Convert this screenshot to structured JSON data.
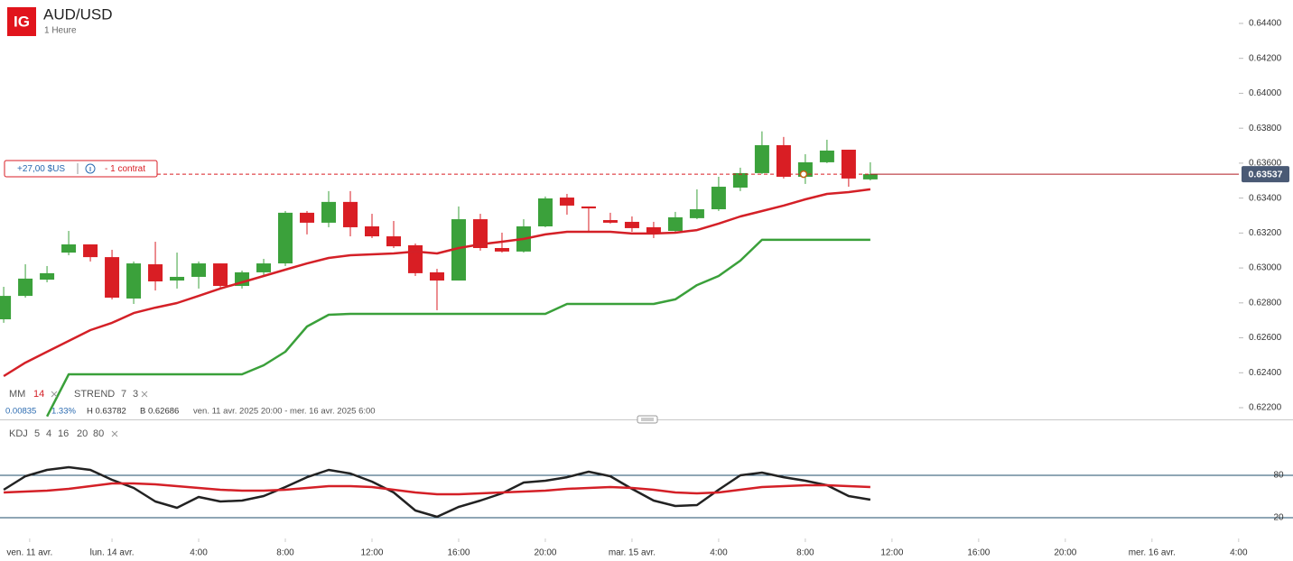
{
  "header": {
    "logo": "IG",
    "title": "AUD/USD",
    "subtitle": "1 Heure"
  },
  "position": {
    "pnl": "+27,00 $US",
    "size": "- 1 contrat"
  },
  "stats": {
    "change": "0.00835",
    "change_pct": "1.33%",
    "high": "H 0.63782",
    "low": "B 0.62686",
    "range": "ven. 11 avr. 2025 20:00 - mer. 16 avr. 2025 6:00"
  },
  "chart_data": [
    {
      "type": "candlestick",
      "up_color": "#3ba13b",
      "down_color": "#d91e24",
      "open": [
        0.62706,
        0.6284,
        0.62933,
        0.63088,
        0.63135,
        0.63062,
        0.62825,
        0.63021,
        0.62928,
        0.62949,
        0.63026,
        0.62897,
        0.62975,
        0.63026,
        0.63316,
        0.63259,
        0.63378,
        0.63238,
        0.63181,
        0.6313,
        0.62975,
        0.62928,
        0.63279,
        0.63114,
        0.63094,
        0.63238,
        0.63403,
        0.63352,
        0.63274,
        0.63264,
        0.63233,
        0.63212,
        0.63285,
        0.63336,
        0.6346,
        0.63543,
        0.63703,
        0.63522,
        0.63605,
        0.63677,
        0.63507
      ],
      "high": [
        0.62892,
        0.63021,
        0.63011,
        0.63212,
        0.63135,
        0.63104,
        0.63037,
        0.6315,
        0.63088,
        0.63037,
        0.63026,
        0.62985,
        0.63052,
        0.63326,
        0.63326,
        0.6344,
        0.6344,
        0.6331,
        0.63269,
        0.6314,
        0.62995,
        0.63352,
        0.6331,
        0.63202,
        0.63279,
        0.63409,
        0.63424,
        0.63352,
        0.63316,
        0.63295,
        0.63264,
        0.63321,
        0.6345,
        0.63522,
        0.63574,
        0.63782,
        0.6375,
        0.63651,
        0.63734,
        0.63677,
        0.63605
      ],
      "low": [
        0.62686,
        0.6283,
        0.62918,
        0.63073,
        0.63037,
        0.6282,
        0.62794,
        0.62871,
        0.62882,
        0.62882,
        0.62882,
        0.62882,
        0.62959,
        0.63011,
        0.63192,
        0.63233,
        0.63181,
        0.63171,
        0.63114,
        0.62954,
        0.62758,
        0.62928,
        0.63099,
        0.63088,
        0.63088,
        0.63233,
        0.63305,
        0.63202,
        0.63254,
        0.63207,
        0.63171,
        0.63202,
        0.63279,
        0.63326,
        0.6344,
        0.63538,
        0.63512,
        0.63481,
        0.636,
        0.63465,
        0.63501
      ],
      "close": [
        0.6284,
        0.62939,
        0.6297,
        0.63135,
        0.63062,
        0.6283,
        0.63026,
        0.62923,
        0.62949,
        0.63026,
        0.62897,
        0.62975,
        0.63026,
        0.63316,
        0.63259,
        0.63378,
        0.63233,
        0.63181,
        0.63124,
        0.6297,
        0.62928,
        0.63279,
        0.63114,
        0.63094,
        0.63238,
        0.63398,
        0.63357,
        0.63341,
        0.63259,
        0.63228,
        0.63197,
        0.6329,
        0.63336,
        0.63465,
        0.63543,
        0.63703,
        0.63522,
        0.63605,
        0.63672,
        0.63512,
        0.63537
      ],
      "series": [
        {
          "name": "MM",
          "params": [
            14
          ],
          "color": "#d42027",
          "values": [
            0.62381,
            0.62458,
            0.6252,
            0.62582,
            0.62644,
            0.62686,
            0.62742,
            0.62773,
            0.62799,
            0.6284,
            0.62882,
            0.62918,
            0.62954,
            0.6299,
            0.63026,
            0.63057,
            0.63073,
            0.63078,
            0.63083,
            0.63094,
            0.63083,
            0.63114,
            0.63135,
            0.6315,
            0.63166,
            0.63192,
            0.63207,
            0.63207,
            0.63207,
            0.63197,
            0.63197,
            0.63202,
            0.63217,
            0.63254,
            0.63295,
            0.63326,
            0.63357,
            0.63393,
            0.63424,
            0.63434,
            0.6345
          ]
        },
        {
          "name": "STREND",
          "params": [
            7,
            3
          ],
          "color": "#3aa03a",
          "values": [
            null,
            null,
            0.6215,
            0.62391,
            0.62391,
            0.62391,
            0.62391,
            0.62391,
            0.62391,
            0.62391,
            0.62391,
            0.62391,
            0.62443,
            0.6252,
            0.62665,
            0.62732,
            0.62737,
            0.62737,
            0.62737,
            0.62737,
            0.62737,
            0.62737,
            0.62737,
            0.62737,
            0.62737,
            0.62737,
            0.62794,
            0.62794,
            0.62794,
            0.62794,
            0.62794,
            0.6282,
            0.62902,
            0.62954,
            0.63042,
            0.63161,
            0.63161,
            0.63161,
            0.63161,
            0.63161,
            0.63161
          ]
        }
      ],
      "xlim": [
        -0.17,
        58.8
      ],
      "ylim": [
        0.62133,
        0.64534
      ],
      "yticks": [
        {
          "value": 0.644,
          "label": "0.64400"
        },
        {
          "value": 0.642,
          "label": "0.64200"
        },
        {
          "value": 0.64,
          "label": "0.64000"
        },
        {
          "value": 0.638,
          "label": "0.63800"
        },
        {
          "value": 0.636,
          "label": "0.63600"
        },
        {
          "value": 0.634,
          "label": "0.63400"
        },
        {
          "value": 0.632,
          "label": "0.63200"
        },
        {
          "value": 0.63,
          "label": "0.63000"
        },
        {
          "value": 0.628,
          "label": "0.62800"
        },
        {
          "value": 0.626,
          "label": "0.62600"
        },
        {
          "value": 0.624,
          "label": "0.62400"
        },
        {
          "value": 0.622,
          "label": "0.62200"
        }
      ]
    },
    {
      "type": "line",
      "title": "KDJ",
      "params": [
        5,
        4,
        16,
        20,
        80
      ],
      "series": [
        {
          "color": "#222222",
          "values": [
            59.6,
            78.7,
            87.7,
            91.5,
            87.7,
            73.6,
            62.1,
            43.0,
            34.0,
            49.4,
            43.0,
            44.3,
            50.6,
            63.4,
            77.4,
            87.7,
            82.6,
            71.1,
            55.7,
            30.2,
            21.3,
            35.3,
            44.3,
            54.5,
            69.8,
            72.3,
            77.4,
            85.1,
            78.7,
            60.9,
            44.3,
            36.6,
            37.9,
            59.6,
            80.0,
            83.8,
            77.4,
            72.3,
            66.0,
            50.6,
            45.5
          ]
        },
        {
          "color": "#d42027",
          "values": [
            55.7,
            57.0,
            58.3,
            60.9,
            64.7,
            68.5,
            68.5,
            67.2,
            64.7,
            62.1,
            59.6,
            58.3,
            58.3,
            59.6,
            62.1,
            64.7,
            64.7,
            63.4,
            59.6,
            55.7,
            53.2,
            53.2,
            54.5,
            55.7,
            57.0,
            58.3,
            60.9,
            62.1,
            63.4,
            62.1,
            59.6,
            55.7,
            54.5,
            55.7,
            59.6,
            63.4,
            64.7,
            66.0,
            66.0,
            64.7,
            63.4
          ]
        }
      ],
      "xlim": [
        -0.17,
        58.8
      ],
      "xticks": [
        {
          "value": 1.2,
          "label": "ven. 11 avr."
        },
        {
          "value": 5,
          "label": "lun. 14 avr."
        },
        {
          "value": 9,
          "label": "4:00"
        },
        {
          "value": 13,
          "label": "8:00"
        },
        {
          "value": 17,
          "label": "12:00"
        },
        {
          "value": 21,
          "label": "16:00"
        },
        {
          "value": 25,
          "label": "20:00"
        },
        {
          "value": 29,
          "label": "mar. 15 avr."
        },
        {
          "value": 33,
          "label": "4:00"
        },
        {
          "value": 37,
          "label": "8:00"
        },
        {
          "value": 41,
          "label": "12:00"
        },
        {
          "value": 45,
          "label": "16:00"
        },
        {
          "value": 49,
          "label": "20:00"
        },
        {
          "value": 53,
          "label": "mer. 16 avr."
        },
        {
          "value": 57,
          "label": "4:00"
        }
      ],
      "ylim": [
        -6.8,
        152.8
      ],
      "yticks": [
        80,
        20
      ]
    }
  ]
}
